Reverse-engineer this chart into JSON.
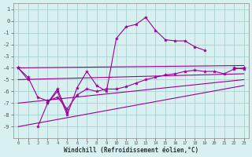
{
  "xlabel": "Windchill (Refroidissement éolien,°C)",
  "x_values": [
    0,
    1,
    2,
    3,
    4,
    5,
    6,
    7,
    8,
    9,
    10,
    11,
    12,
    13,
    14,
    15,
    16,
    17,
    18,
    19,
    20,
    21,
    22,
    23
  ],
  "zigzag_y": [
    -4.0,
    -5.0,
    null,
    -7.0,
    -6.0,
    -8.0,
    -5.7,
    -4.3,
    -5.5,
    -6.0,
    -1.5,
    -0.5,
    -0.3,
    0.3,
    -0.8,
    -1.6,
    -1.7,
    -1.7,
    -2.2,
    -2.5,
    null,
    null,
    -4.0,
    -4.1
  ],
  "zigzag2_y": [
    -4.0,
    null,
    -9.0,
    -7.0,
    -5.8,
    -7.8,
    null,
    null,
    null,
    null,
    null,
    null,
    null,
    null,
    null,
    null,
    null,
    null,
    null,
    null,
    null,
    null,
    null,
    null
  ],
  "trend_lines": [
    {
      "x0": 0,
      "y0": -4.0,
      "x1": 23,
      "y1": -3.8
    },
    {
      "x0": 0,
      "y0": -5.0,
      "x1": 23,
      "y1": -4.5
    },
    {
      "x0": 0,
      "y0": -7.0,
      "x1": 23,
      "y1": -5.0
    },
    {
      "x0": 0,
      "y0": -9.0,
      "x1": 23,
      "y1": -5.5
    }
  ],
  "smooth_y": [
    -4.0,
    -4.8,
    -6.5,
    -6.8,
    -6.5,
    -7.5,
    -6.3,
    -5.8,
    -6.0,
    -5.8,
    -5.8,
    -5.6,
    -5.3,
    -5.0,
    -4.8,
    -4.6,
    -4.5,
    -4.3,
    -4.2,
    -4.3,
    -4.3,
    -4.5,
    -4.1,
    -4.0
  ],
  "bg_color": "#d8f0f0",
  "grid_color": "#a0cccc",
  "line_color": "#990099",
  "marker": "*",
  "ylim": [
    -10,
    1.5
  ],
  "xlim": [
    -0.5,
    23.5
  ],
  "yticks": [
    1,
    0,
    -1,
    -2,
    -3,
    -4,
    -5,
    -6,
    -7,
    -8,
    -9
  ],
  "xtick_labels": [
    "0",
    "1",
    "2",
    "3",
    "4",
    "5",
    "6",
    "7",
    "8",
    "9",
    "10",
    "11",
    "12",
    "13",
    "14",
    "15",
    "16",
    "17",
    "18",
    "19",
    "20",
    "21",
    "22",
    "23"
  ]
}
